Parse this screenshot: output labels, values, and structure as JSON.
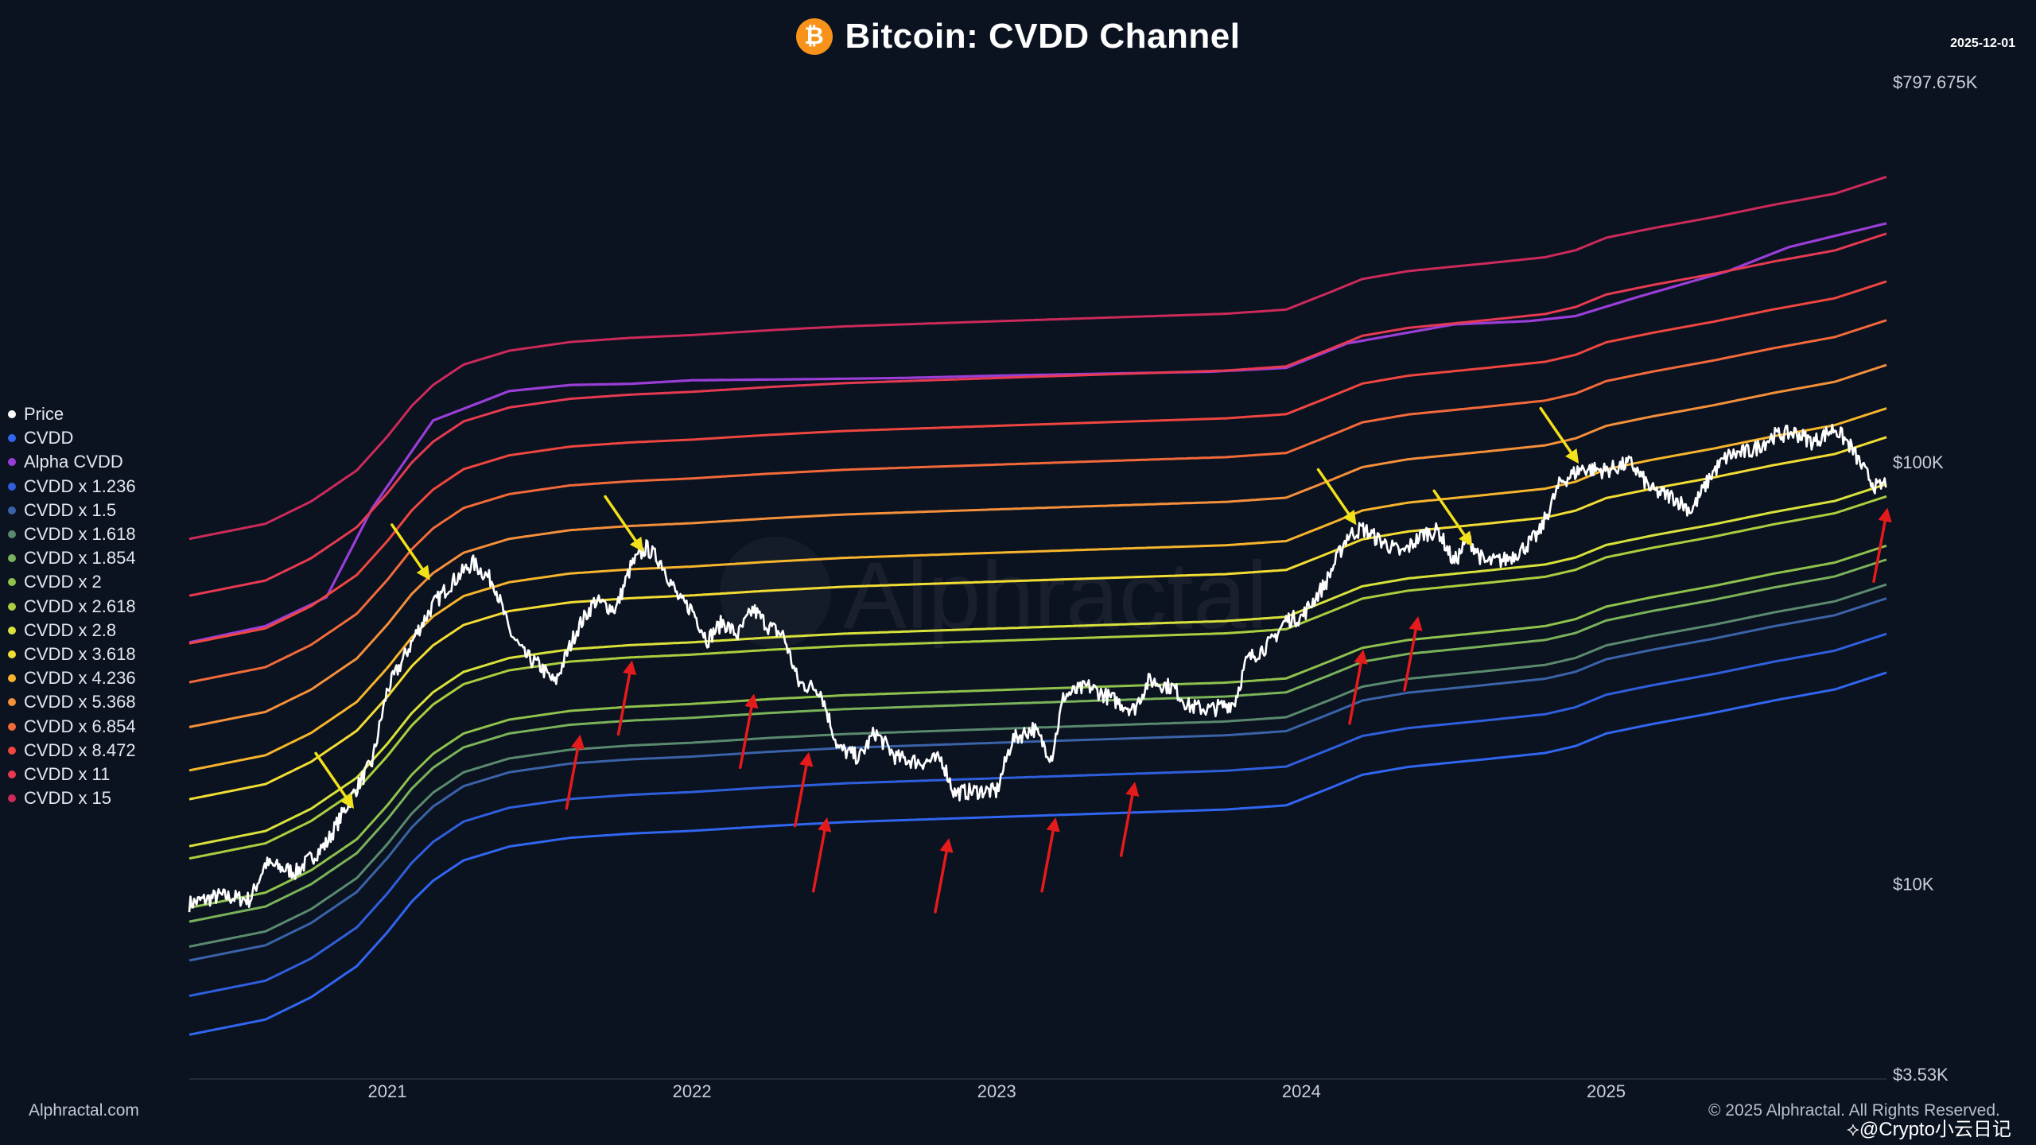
{
  "header": {
    "icon_glyph": "₿",
    "title": "Bitcoin: CVDD Channel",
    "date": "2025-12-01"
  },
  "footer": {
    "source": "Alphractal.com",
    "copyright": "© 2025 Alphractal. All Rights Reserved.",
    "repost_tag": "@Crypto小云日记"
  },
  "watermark": "Alphractal",
  "icons": {
    "bitcoin": "bitcoin-logo-icon",
    "weibo": "weibo-share-icon"
  },
  "colors": {
    "background": "#0b1220",
    "price": "#ffffff",
    "arrow_up": "#e51b1b",
    "arrow_down": "#f2e01a",
    "bitcoin": "#f7931a"
  },
  "chart_data": {
    "type": "line",
    "title": "Bitcoin: CVDD Channel",
    "y_scale": "log",
    "ylim": [
      3530,
      797675
    ],
    "y_ticks": [
      {
        "value": 797675,
        "label": "$797.675K"
      },
      {
        "value": 100000,
        "label": "$100K"
      },
      {
        "value": 10000,
        "label": "$10K"
      },
      {
        "value": 3530,
        "label": "$3.53K"
      }
    ],
    "xlim": [
      2020.35,
      2025.92
    ],
    "x_ticks": [
      {
        "value": 2021.0,
        "label": "2021"
      },
      {
        "value": 2022.0,
        "label": "2022"
      },
      {
        "value": 2023.0,
        "label": "2023"
      },
      {
        "value": 2024.0,
        "label": "2024"
      },
      {
        "value": 2025.0,
        "label": "2025"
      }
    ],
    "legend_position": "left",
    "series": [
      {
        "name": "Price",
        "color": "#ffffff",
        "width": 2.6,
        "points": [
          [
            2020.35,
            9000
          ],
          [
            2020.45,
            9400
          ],
          [
            2020.55,
            9200
          ],
          [
            2020.6,
            11200
          ],
          [
            2020.7,
            10700
          ],
          [
            2020.8,
            12500
          ],
          [
            2020.9,
            17000
          ],
          [
            2020.95,
            19500
          ],
          [
            2021.0,
            29000
          ],
          [
            2021.05,
            34000
          ],
          [
            2021.1,
            40000
          ],
          [
            2021.15,
            46000
          ],
          [
            2021.2,
            51000
          ],
          [
            2021.28,
            58000
          ],
          [
            2021.35,
            52000
          ],
          [
            2021.4,
            40000
          ],
          [
            2021.45,
            35000
          ],
          [
            2021.5,
            33000
          ],
          [
            2021.55,
            30000
          ],
          [
            2021.62,
            40000
          ],
          [
            2021.68,
            47000
          ],
          [
            2021.75,
            45000
          ],
          [
            2021.8,
            57000
          ],
          [
            2021.85,
            63000
          ],
          [
            2021.9,
            58000
          ],
          [
            2021.96,
            47000
          ],
          [
            2022.0,
            45000
          ],
          [
            2022.05,
            38000
          ],
          [
            2022.1,
            42000
          ],
          [
            2022.15,
            39000
          ],
          [
            2022.2,
            45000
          ],
          [
            2022.25,
            41000
          ],
          [
            2022.3,
            39000
          ],
          [
            2022.35,
            30000
          ],
          [
            2022.42,
            29000
          ],
          [
            2022.48,
            21000
          ],
          [
            2022.55,
            20000
          ],
          [
            2022.6,
            23000
          ],
          [
            2022.67,
            20000
          ],
          [
            2022.75,
            19500
          ],
          [
            2022.82,
            19800
          ],
          [
            2022.86,
            16500
          ],
          [
            2022.95,
            16700
          ],
          [
            2023.0,
            16600
          ],
          [
            2023.05,
            22000
          ],
          [
            2023.12,
            23500
          ],
          [
            2023.18,
            20000
          ],
          [
            2023.22,
            28000
          ],
          [
            2023.3,
            29500
          ],
          [
            2023.38,
            27500
          ],
          [
            2023.45,
            26000
          ],
          [
            2023.5,
            30500
          ],
          [
            2023.58,
            29300
          ],
          [
            2023.63,
            26500
          ],
          [
            2023.7,
            26000
          ],
          [
            2023.78,
            27000
          ],
          [
            2023.82,
            34000
          ],
          [
            2023.9,
            37500
          ],
          [
            2023.95,
            42500
          ],
          [
            2024.0,
            43000
          ],
          [
            2024.08,
            52000
          ],
          [
            2024.15,
            67000
          ],
          [
            2024.2,
            70000
          ],
          [
            2024.25,
            66000
          ],
          [
            2024.33,
            61000
          ],
          [
            2024.4,
            68000
          ],
          [
            2024.45,
            69000
          ],
          [
            2024.5,
            58000
          ],
          [
            2024.55,
            66000
          ],
          [
            2024.6,
            58000
          ],
          [
            2024.67,
            59000
          ],
          [
            2024.72,
            62000
          ],
          [
            2024.78,
            68000
          ],
          [
            2024.85,
            90000
          ],
          [
            2024.92,
            97000
          ],
          [
            2025.0,
            96000
          ],
          [
            2025.08,
            100000
          ],
          [
            2025.15,
            86000
          ],
          [
            2025.22,
            83000
          ],
          [
            2025.28,
            77000
          ],
          [
            2025.35,
            95000
          ],
          [
            2025.4,
            104000
          ],
          [
            2025.48,
            107000
          ],
          [
            2025.55,
            116000
          ],
          [
            2025.62,
            118000
          ],
          [
            2025.68,
            112000
          ],
          [
            2025.75,
            121000
          ],
          [
            2025.8,
            110000
          ],
          [
            2025.85,
            95000
          ],
          [
            2025.89,
            87000
          ],
          [
            2025.92,
            90000
          ]
        ]
      },
      {
        "name": "CVDD",
        "mult": 1,
        "color": "#3066f0"
      },
      {
        "name": "Alpha CVDD",
        "color": "#9a3ed8",
        "width": 3.2,
        "points": [
          [
            2020.35,
            37500
          ],
          [
            2020.6,
            41000
          ],
          [
            2020.8,
            48000
          ],
          [
            2020.95,
            78000
          ],
          [
            2021.15,
            126000
          ],
          [
            2021.4,
            148000
          ],
          [
            2021.6,
            153000
          ],
          [
            2021.8,
            154000
          ],
          [
            2022.0,
            157000
          ],
          [
            2022.4,
            158000
          ],
          [
            2022.7,
            159000
          ],
          [
            2023.0,
            161000
          ],
          [
            2023.4,
            163000
          ],
          [
            2023.7,
            164500
          ],
          [
            2023.95,
            168000
          ],
          [
            2024.15,
            192000
          ],
          [
            2024.5,
            213000
          ],
          [
            2024.75,
            217000
          ],
          [
            2024.9,
            223000
          ],
          [
            2025.1,
            247000
          ],
          [
            2025.4,
            285000
          ],
          [
            2025.6,
            325000
          ],
          [
            2025.92,
            370000
          ]
        ]
      },
      {
        "name": "CVDD x 1.236",
        "mult": 1.236,
        "color": "#2f5fdc"
      },
      {
        "name": "CVDD x 1.5",
        "mult": 1.5,
        "color": "#3a63a8"
      },
      {
        "name": "CVDD x 1.618",
        "mult": 1.618,
        "color": "#5a8a6e"
      },
      {
        "name": "CVDD x 1.854",
        "mult": 1.854,
        "color": "#7ab35a"
      },
      {
        "name": "CVDD x 2",
        "mult": 2,
        "color": "#8fc24c"
      },
      {
        "name": "CVDD x 2.618",
        "mult": 2.618,
        "color": "#a9cf3f"
      },
      {
        "name": "CVDD x 2.8",
        "mult": 2.8,
        "color": "#d9e23a"
      },
      {
        "name": "CVDD x 3.618",
        "mult": 3.618,
        "color": "#f2dd33"
      },
      {
        "name": "CVDD x 4.236",
        "mult": 4.236,
        "color": "#f7b52c"
      },
      {
        "name": "CVDD x 5.368",
        "mult": 5.368,
        "color": "#f5903a"
      },
      {
        "name": "CVDD x 6.854",
        "mult": 6.854,
        "color": "#f36a3a"
      },
      {
        "name": "CVDD x 8.472",
        "mult": 8.472,
        "color": "#ef4640"
      },
      {
        "name": "CVDD x 11",
        "mult": 11,
        "color": "#e63a52"
      },
      {
        "name": "CVDD x 15",
        "mult": 15,
        "color": "#cc2a5a"
      }
    ],
    "cvdd_base": [
      [
        2020.35,
        4400
      ],
      [
        2020.6,
        4780
      ],
      [
        2020.75,
        5400
      ],
      [
        2020.9,
        6400
      ],
      [
        2021.0,
        7700
      ],
      [
        2021.08,
        9100
      ],
      [
        2021.15,
        10200
      ],
      [
        2021.25,
        11400
      ],
      [
        2021.4,
        12300
      ],
      [
        2021.6,
        12900
      ],
      [
        2021.8,
        13200
      ],
      [
        2022.0,
        13400
      ],
      [
        2022.25,
        13750
      ],
      [
        2022.5,
        14050
      ],
      [
        2022.75,
        14250
      ],
      [
        2023.0,
        14450
      ],
      [
        2023.25,
        14650
      ],
      [
        2023.5,
        14850
      ],
      [
        2023.75,
        15050
      ],
      [
        2023.95,
        15400
      ],
      [
        2024.1,
        17000
      ],
      [
        2024.2,
        18200
      ],
      [
        2024.35,
        19000
      ],
      [
        2024.6,
        19800
      ],
      [
        2024.8,
        20500
      ],
      [
        2024.9,
        21300
      ],
      [
        2025.0,
        22800
      ],
      [
        2025.15,
        24000
      ],
      [
        2025.35,
        25500
      ],
      [
        2025.55,
        27300
      ],
      [
        2025.75,
        29000
      ],
      [
        2025.92,
        31800
      ]
    ],
    "annotations": [
      {
        "type": "arrow",
        "direction": "up",
        "color": "#e51b1b",
        "x": 2021.63,
        "y": 22000
      },
      {
        "type": "arrow",
        "direction": "up",
        "color": "#e51b1b",
        "x": 2021.8,
        "y": 33000
      },
      {
        "type": "arrow",
        "direction": "up",
        "color": "#e51b1b",
        "x": 2022.2,
        "y": 27500
      },
      {
        "type": "arrow",
        "direction": "up",
        "color": "#e51b1b",
        "x": 2022.38,
        "y": 20000
      },
      {
        "type": "arrow",
        "direction": "up",
        "color": "#e51b1b",
        "x": 2022.44,
        "y": 14000
      },
      {
        "type": "arrow",
        "direction": "up",
        "color": "#e51b1b",
        "x": 2022.84,
        "y": 12500
      },
      {
        "type": "arrow",
        "direction": "up",
        "color": "#e51b1b",
        "x": 2023.19,
        "y": 14000
      },
      {
        "type": "arrow",
        "direction": "up",
        "color": "#e51b1b",
        "x": 2023.45,
        "y": 17000
      },
      {
        "type": "arrow",
        "direction": "up",
        "color": "#e51b1b",
        "x": 2024.2,
        "y": 35000
      },
      {
        "type": "arrow",
        "direction": "up",
        "color": "#e51b1b",
        "x": 2024.38,
        "y": 42000
      },
      {
        "type": "arrow",
        "direction": "up",
        "color": "#e51b1b",
        "x": 2025.92,
        "y": 76000
      },
      {
        "type": "arrow",
        "direction": "down",
        "color": "#f2e01a",
        "x": 2020.88,
        "y": 15500
      },
      {
        "type": "arrow",
        "direction": "down",
        "color": "#f2e01a",
        "x": 2021.13,
        "y": 54000
      },
      {
        "type": "arrow",
        "direction": "down",
        "color": "#f2e01a",
        "x": 2021.83,
        "y": 63000
      },
      {
        "type": "arrow",
        "direction": "down",
        "color": "#f2e01a",
        "x": 2024.17,
        "y": 73000
      },
      {
        "type": "arrow",
        "direction": "down",
        "color": "#f2e01a",
        "x": 2024.55,
        "y": 65000
      },
      {
        "type": "arrow",
        "direction": "down",
        "color": "#f2e01a",
        "x": 2024.9,
        "y": 102000
      }
    ]
  }
}
